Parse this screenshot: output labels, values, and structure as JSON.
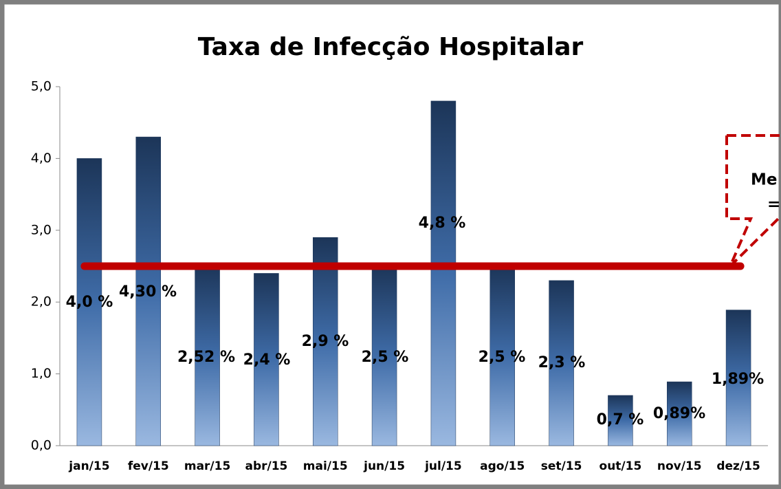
{
  "chart_data": {
    "type": "bar",
    "title": "Taxa de Infecção Hospitalar",
    "categories": [
      "jan/15",
      "fev/15",
      "mar/15",
      "abr/15",
      "mai/15",
      "jun/15",
      "jul/15",
      "ago/15",
      "set/15",
      "out/15",
      "nov/15",
      "dez/15"
    ],
    "values": [
      4.0,
      4.3,
      2.52,
      2.4,
      2.9,
      2.5,
      4.8,
      2.5,
      2.3,
      0.7,
      0.89,
      1.89
    ],
    "value_labels": [
      "4,0 %",
      "4,30 %",
      "2,52 %",
      "2,4 %",
      "2,9 %",
      "2,5 %",
      "4,8 %",
      "2,5 %",
      "2,3 %",
      "0,7 %",
      "0,89%",
      "1,89%"
    ],
    "color": "#2c5489",
    "ylim": [
      0,
      5
    ],
    "yticks": [
      {
        "value": 0,
        "label": "0,0"
      },
      {
        "value": 1,
        "label": "1,0"
      },
      {
        "value": 2,
        "label": "2,0"
      },
      {
        "value": 3,
        "label": "3,0"
      },
      {
        "value": 4,
        "label": "4,0"
      },
      {
        "value": 5,
        "label": "5,0"
      }
    ],
    "mean_line": {
      "value": 2.5,
      "color": "#c00000"
    },
    "annotation": [
      "Me",
      "="
    ]
  }
}
